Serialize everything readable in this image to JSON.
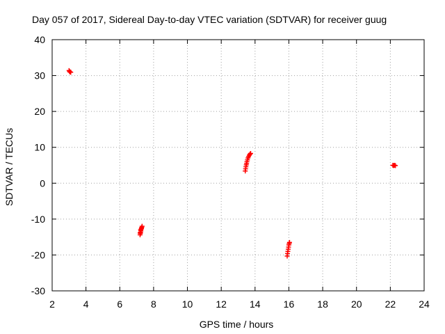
{
  "chart_data": {
    "type": "scatter",
    "title": "Day 057 of 2017, Sidereal Day-to-day VTEC variation (SDTVAR) for receiver guug",
    "xlabel": "GPS time / hours",
    "ylabel": "SDTVAR / TECUs",
    "xlim": [
      2,
      24
    ],
    "ylim": [
      -30,
      40
    ],
    "xticks": [
      2,
      4,
      6,
      8,
      10,
      12,
      14,
      16,
      18,
      20,
      22,
      24
    ],
    "yticks": [
      -30,
      -20,
      -10,
      0,
      10,
      20,
      30,
      40
    ],
    "grid": true,
    "marker": "+",
    "series": [
      {
        "name": "SDTVAR",
        "color": "#ff0000",
        "points": [
          [
            3.0,
            31.4
          ],
          [
            3.03,
            31.1
          ],
          [
            3.06,
            31.0
          ],
          [
            3.1,
            30.9
          ],
          [
            7.2,
            -14.4
          ],
          [
            7.22,
            -14.0
          ],
          [
            7.24,
            -13.6
          ],
          [
            7.25,
            -13.2
          ],
          [
            7.27,
            -12.8
          ],
          [
            7.28,
            -12.6
          ],
          [
            7.3,
            -12.3
          ],
          [
            7.32,
            -12.0
          ],
          [
            7.2,
            -13.8
          ],
          [
            7.23,
            -13.0
          ],
          [
            13.42,
            3.4
          ],
          [
            13.44,
            4.0
          ],
          [
            13.46,
            4.6
          ],
          [
            13.48,
            5.1
          ],
          [
            13.5,
            5.5
          ],
          [
            13.52,
            6.0
          ],
          [
            13.55,
            6.5
          ],
          [
            13.58,
            7.0
          ],
          [
            13.62,
            7.4
          ],
          [
            13.66,
            7.8
          ],
          [
            13.7,
            8.1
          ],
          [
            13.74,
            8.3
          ],
          [
            15.9,
            -20.3
          ],
          [
            15.92,
            -19.6
          ],
          [
            15.94,
            -19.0
          ],
          [
            15.96,
            -18.4
          ],
          [
            15.98,
            -17.8
          ],
          [
            16.0,
            -17.2
          ],
          [
            16.02,
            -16.8
          ],
          [
            16.04,
            -16.5
          ],
          [
            22.15,
            5.0
          ],
          [
            22.2,
            4.9
          ],
          [
            22.25,
            5.0
          ],
          [
            22.3,
            4.9
          ]
        ]
      }
    ]
  }
}
